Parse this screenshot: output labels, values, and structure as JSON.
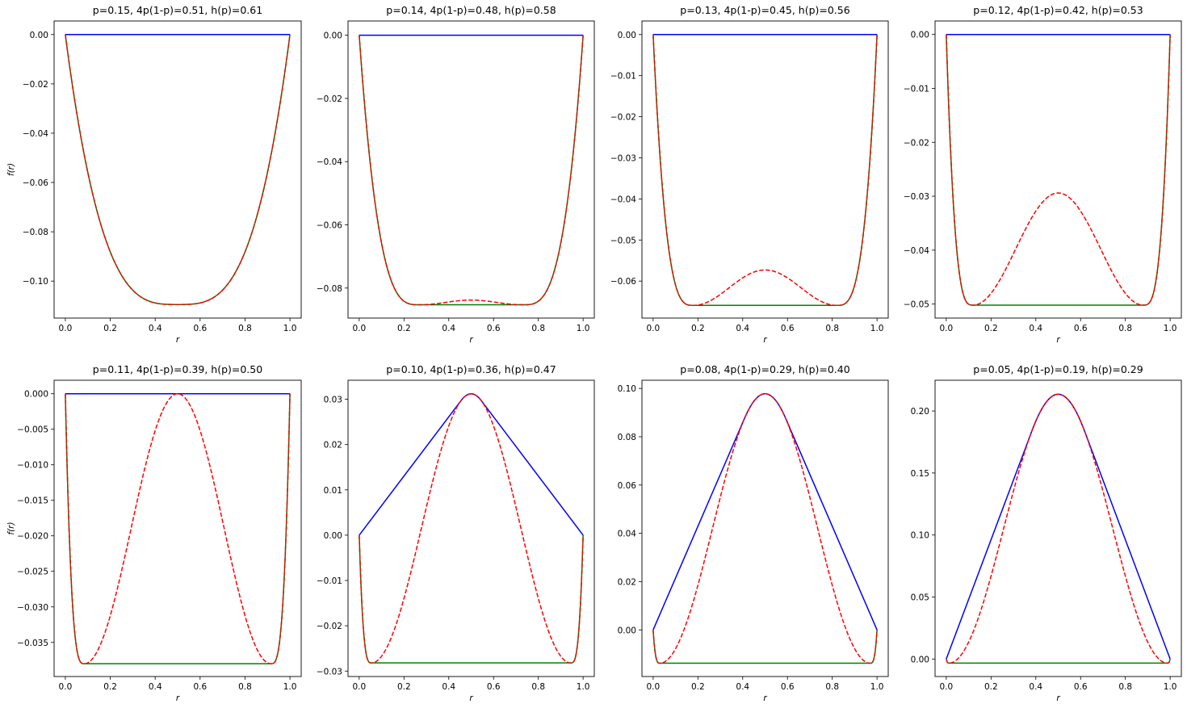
{
  "chart_data": [
    {
      "type": "line",
      "title": "p=0.15, 4p(1-p)=0.51, h(p)=0.61",
      "xlabel": "r",
      "ylabel": "f(r)",
      "xlim": [
        -0.05,
        1.05
      ],
      "ylim": [
        -0.115,
        0.0055
      ],
      "xticks": [
        "0.0",
        "0.2",
        "0.4",
        "0.6",
        "0.8",
        "1.0"
      ],
      "yticks": [
        "0.00",
        "−0.02",
        "−0.04",
        "−0.06",
        "−0.08",
        "−0.10"
      ],
      "ytick_values": [
        0.0,
        -0.02,
        -0.04,
        -0.06,
        -0.08,
        -0.1
      ],
      "min_value": -0.1095,
      "min_r": 0.5,
      "peak_value": -0.1095,
      "blue_endpoints": [
        0.0,
        0.0
      ],
      "series": []
    },
    {
      "type": "line",
      "title": "p=0.14, 4p(1-p)=0.48, h(p)=0.58",
      "xlabel": "r",
      "ylabel": "",
      "xlim": [
        -0.05,
        1.05
      ],
      "ylim": [
        -0.0895,
        0.0045
      ],
      "xticks": [
        "0.0",
        "0.2",
        "0.4",
        "0.6",
        "0.8",
        "1.0"
      ],
      "yticks": [
        "0.00",
        "−0.02",
        "−0.04",
        "−0.06",
        "−0.08"
      ],
      "ytick_values": [
        0.0,
        -0.02,
        -0.04,
        -0.06,
        -0.08
      ],
      "min_value": -0.0853,
      "min_r": 0.27,
      "peak_value": -0.0838,
      "blue_endpoints": [
        0.0,
        0.0
      ],
      "series": []
    },
    {
      "type": "line",
      "title": "p=0.13, 4p(1-p)=0.45, h(p)=0.56",
      "xlabel": "r",
      "ylabel": "",
      "xlim": [
        -0.05,
        1.05
      ],
      "ylim": [
        -0.069,
        0.0033
      ],
      "xticks": [
        "0.0",
        "0.2",
        "0.4",
        "0.6",
        "0.8",
        "1.0"
      ],
      "yticks": [
        "0.00",
        "−0.01",
        "−0.02",
        "−0.03",
        "−0.04",
        "−0.05",
        "−0.06"
      ],
      "ytick_values": [
        0.0,
        -0.01,
        -0.02,
        -0.03,
        -0.04,
        -0.05,
        -0.06
      ],
      "min_value": -0.0659,
      "min_r": 0.18,
      "peak_value": -0.0573,
      "blue_endpoints": [
        0.0,
        0.0
      ],
      "series": []
    },
    {
      "type": "line",
      "title": "p=0.12, 4p(1-p)=0.42, h(p)=0.53",
      "xlabel": "r",
      "ylabel": "",
      "xlim": [
        -0.05,
        1.05
      ],
      "ylim": [
        -0.0526,
        0.0025
      ],
      "xticks": [
        "0.0",
        "0.2",
        "0.4",
        "0.6",
        "0.8",
        "1.0"
      ],
      "yticks": [
        "0.00",
        "−0.01",
        "−0.02",
        "−0.03",
        "−0.04",
        "−0.05"
      ],
      "ytick_values": [
        0.0,
        -0.01,
        -0.02,
        -0.03,
        -0.04,
        -0.05
      ],
      "min_value": -0.0502,
      "min_r": 0.12,
      "peak_value": -0.0294,
      "blue_endpoints": [
        0.0,
        0.0
      ],
      "series": []
    },
    {
      "type": "line",
      "title": "p=0.11, 4p(1-p)=0.39, h(p)=0.50",
      "xlabel": "r",
      "ylabel": "f(r)",
      "xlim": [
        -0.05,
        1.05
      ],
      "ylim": [
        -0.0398,
        0.0019
      ],
      "xticks": [
        "0.0",
        "0.2",
        "0.4",
        "0.6",
        "0.8",
        "1.0"
      ],
      "yticks": [
        "0.000",
        "−0.005",
        "−0.010",
        "−0.015",
        "−0.020",
        "−0.025",
        "−0.030",
        "−0.035"
      ],
      "ytick_values": [
        0.0,
        -0.005,
        -0.01,
        -0.015,
        -0.02,
        -0.025,
        -0.03,
        -0.035
      ],
      "min_value": -0.038,
      "min_r": 0.085,
      "peak_value": 0.0,
      "blue_endpoints": [
        0.0,
        0.0
      ],
      "series": []
    },
    {
      "type": "line",
      "title": "p=0.10, 4p(1-p)=0.36, h(p)=0.47",
      "xlabel": "r",
      "ylabel": "",
      "xlim": [
        -0.05,
        1.05
      ],
      "ylim": [
        -0.0312,
        0.0342
      ],
      "xticks": [
        "0.0",
        "0.2",
        "0.4",
        "0.6",
        "0.8",
        "1.0"
      ],
      "yticks": [
        "0.03",
        "0.02",
        "0.01",
        "0.00",
        "−0.01",
        "−0.02",
        "−0.03"
      ],
      "ytick_values": [
        0.03,
        0.02,
        0.01,
        0.0,
        -0.01,
        -0.02,
        -0.03
      ],
      "min_value": -0.0282,
      "min_r": 0.055,
      "peak_value": 0.0312,
      "blue_endpoints": [
        0.0,
        0.0
      ],
      "series": []
    },
    {
      "type": "line",
      "title": "p=0.08, 4p(1-p)=0.29, h(p)=0.40",
      "xlabel": "r",
      "ylabel": "",
      "xlim": [
        -0.05,
        1.05
      ],
      "ylim": [
        -0.0193,
        0.1034
      ],
      "xticks": [
        "0.0",
        "0.2",
        "0.4",
        "0.6",
        "0.8",
        "1.0"
      ],
      "yticks": [
        "0.10",
        "0.08",
        "0.06",
        "0.04",
        "0.02",
        "0.00"
      ],
      "ytick_values": [
        0.1,
        0.08,
        0.06,
        0.04,
        0.02,
        0.0
      ],
      "min_value": -0.0138,
      "min_r": 0.03,
      "peak_value": 0.0978,
      "blue_endpoints": [
        0.0,
        0.0
      ],
      "series": []
    },
    {
      "type": "line",
      "title": "p=0.05, 4p(1-p)=0.19, h(p)=0.29",
      "xlabel": "r",
      "ylabel": "",
      "xlim": [
        -0.05,
        1.05
      ],
      "ylim": [
        -0.0141,
        0.2248
      ],
      "xticks": [
        "0.0",
        "0.2",
        "0.4",
        "0.6",
        "0.8",
        "1.0"
      ],
      "yticks": [
        "0.20",
        "0.15",
        "0.10",
        "0.05",
        "0.00"
      ],
      "ytick_values": [
        0.2,
        0.15,
        0.1,
        0.05,
        0.0
      ],
      "min_value": -0.0033,
      "min_r": 0.012,
      "peak_value": 0.2135,
      "blue_endpoints": [
        0.0,
        0.0
      ],
      "series": []
    }
  ],
  "colors": {
    "blue_series": "#0000ff",
    "green_series": "#008000",
    "red_dashed_series": "#ff0000",
    "axes": "#000000",
    "background": "#ffffff"
  }
}
